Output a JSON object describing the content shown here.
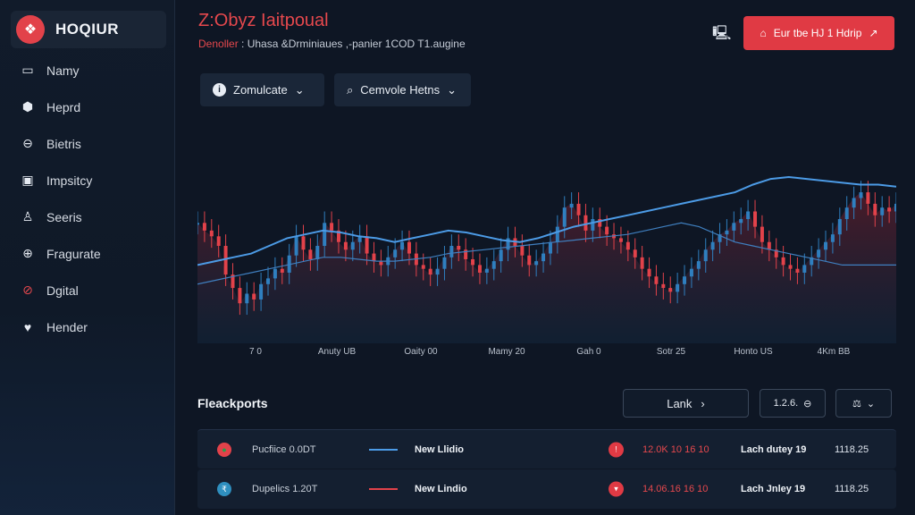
{
  "app": {
    "brand_name": "HOQIUR",
    "brand_logo_glyph": "❖"
  },
  "sidebar": {
    "items": [
      {
        "label": "Namy",
        "icon": "image-icon",
        "glyph": "▭"
      },
      {
        "label": "Heprd",
        "icon": "shield-icon",
        "glyph": "⬢"
      },
      {
        "label": "Bietris",
        "icon": "minus-circle-icon",
        "glyph": "⊖"
      },
      {
        "label": "Impsitcy",
        "icon": "monitor-icon",
        "glyph": "▣"
      },
      {
        "label": "Seeris",
        "icon": "user-icon",
        "glyph": "♙"
      },
      {
        "label": "Fragurate",
        "icon": "globe-icon",
        "glyph": "⊕"
      },
      {
        "label": "Dgital",
        "icon": "no-entry-icon",
        "glyph": "⊘"
      },
      {
        "label": "Hender",
        "icon": "heart-icon",
        "glyph": "♥"
      }
    ]
  },
  "header": {
    "title": "Z:Obyz Iaitpoual",
    "subtitle_accent": "Denoller",
    "subtitle": "Uhasa &Drminiaues ,-panier 1COD T1.augine",
    "monitor_glyph": "🖳",
    "cta_label": "Eur tbe HJ 1 Hdrip",
    "cta_left_glyph": "⌂",
    "cta_right_glyph": "↗"
  },
  "filters": [
    {
      "label": "Zomulcate",
      "glyph": "i",
      "chevron": "⌄"
    },
    {
      "label": "Cemvole Hetns",
      "glyph": "⌕",
      "chevron": "⌄"
    }
  ],
  "chart_data": {
    "type": "line",
    "x_tick_labels": [
      "7 0",
      "Anuty UB",
      "Oaity 00",
      "Mamy 20",
      "Gah 0",
      "Sotr 25",
      "Honto US",
      "4Km BB"
    ],
    "close": [
      62,
      58,
      55,
      50,
      35,
      28,
      20,
      25,
      22,
      30,
      33,
      38,
      36,
      45,
      55,
      48,
      43,
      50,
      62,
      58,
      52,
      48,
      52,
      55,
      46,
      42,
      40,
      44,
      48,
      52,
      46,
      40,
      38,
      35,
      38,
      44,
      50,
      48,
      43,
      40,
      36,
      38,
      42,
      48,
      54,
      50,
      45,
      40,
      42,
      46,
      52,
      60,
      70,
      72,
      66,
      58,
      64,
      60,
      56,
      54,
      52,
      48,
      44,
      38,
      34,
      30,
      28,
      26,
      30,
      34,
      38,
      42,
      48,
      52,
      56,
      58,
      62,
      64,
      68,
      60,
      52,
      48,
      44,
      40,
      38,
      36,
      40,
      44,
      48,
      52,
      56,
      64,
      70,
      75,
      78,
      72,
      66,
      70,
      68,
      72
    ],
    "band_fill_color": "#7a1e2c",
    "candle_up_color": "#2f7fbf",
    "candle_down_color": "#e2424a",
    "series": [
      {
        "values": [
          40,
          42,
          44,
          46,
          50,
          54,
          56,
          58,
          57,
          55,
          54,
          52,
          54,
          56,
          58,
          57,
          55,
          53,
          52,
          54,
          57,
          60,
          62,
          64,
          66,
          68,
          70,
          72,
          74,
          76,
          78,
          82,
          85,
          86,
          85,
          84,
          83,
          82,
          82,
          81
        ]
      },
      {
        "values": [
          30,
          32,
          34,
          36,
          38,
          40,
          42,
          44,
          44,
          43,
          42,
          42,
          43,
          44,
          46,
          47,
          48,
          49,
          50,
          51,
          52,
          53,
          54,
          55,
          56,
          58,
          60,
          62,
          60,
          56,
          52,
          50,
          48,
          46,
          44,
          42,
          40,
          40,
          40,
          40
        ]
      }
    ],
    "series_colors": [
      "#4c9be6",
      "#3f7fbf"
    ],
    "ylim": [
      0,
      100
    ]
  },
  "section": {
    "title": "Fleackports",
    "link_label": "Lank",
    "link_chevron": "›",
    "small_1_label": "1.2.6.",
    "small_1_glyph": "⊖",
    "small_2_glyph": "⚖",
    "small_2_chevron": "⌄"
  },
  "table": {
    "rows": [
      {
        "icon_color": "#2a9d4a",
        "icon_bg": "#e2424a",
        "icon_glyph": "●",
        "name": "Pucfiice 0.0DT",
        "line_color": "#4c9be6",
        "status": "New Llidio",
        "alert_glyph": "!",
        "time": "12.0K 10 16 10",
        "desc": "Lach dutey 19",
        "value": "1118.25"
      },
      {
        "icon_color": "#fff",
        "icon_bg": "#2f8fbf",
        "icon_glyph": "₹",
        "name": "Dupelics 1.20T",
        "line_color": "#e2424a",
        "status": "New Lindio",
        "alert_glyph": "▾",
        "time": "14.06.16 16 10",
        "desc": "Lach Jnley 19",
        "value": "1118.25"
      }
    ]
  }
}
